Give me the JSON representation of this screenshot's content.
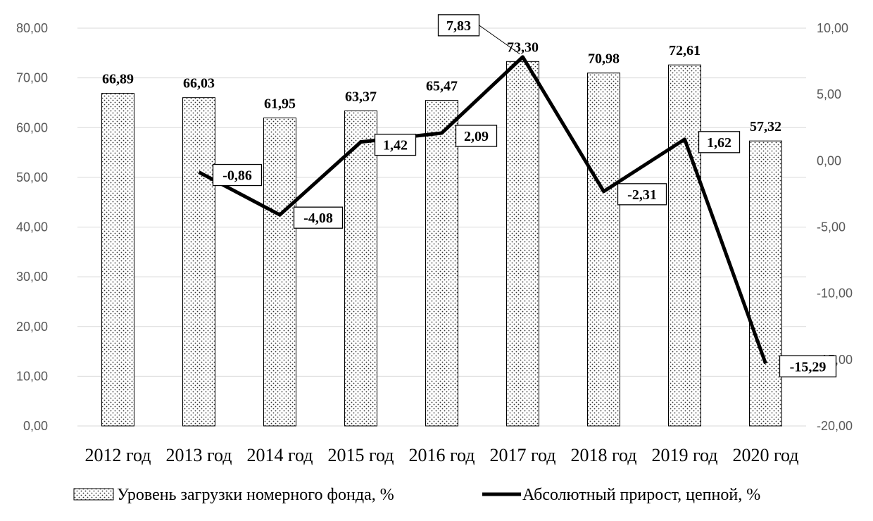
{
  "chart_data": {
    "type": "bar",
    "categories": [
      "2012 год",
      "2013 год",
      "2014 год",
      "2015 год",
      "2016 год",
      "2017 год",
      "2018 год",
      "2019 год",
      "2020 год"
    ],
    "series": [
      {
        "name": "Уровень загрузки номерного фонда, %",
        "type": "bar",
        "axis": "left",
        "values": [
          66.89,
          66.03,
          61.95,
          63.37,
          65.47,
          73.3,
          70.98,
          72.61,
          57.32
        ],
        "labels": [
          "66,89",
          "66,03",
          "61,95",
          "63,37",
          "65,47",
          "73,30",
          "70,98",
          "72,61",
          "57,32"
        ]
      },
      {
        "name": "Абсолютный прирост, цепной, %",
        "type": "line",
        "axis": "right",
        "values": [
          null,
          -0.86,
          -4.08,
          1.42,
          2.09,
          7.83,
          -2.31,
          1.62,
          -15.29
        ],
        "labels": [
          "",
          "-0,86",
          "-4,08",
          "1,42",
          "2,09",
          "7,83",
          "-2,31",
          "1,62",
          "-15,29"
        ]
      }
    ],
    "left_axis": {
      "ylim": [
        0,
        80
      ],
      "ticks": [
        "0,00",
        "10,00",
        "20,00",
        "30,00",
        "40,00",
        "50,00",
        "60,00",
        "70,00",
        "80,00"
      ]
    },
    "right_axis": {
      "ylim": [
        -20,
        10
      ],
      "ticks": [
        "-20,00",
        "-15,00",
        "-10,00",
        "-5,00",
        "0,00",
        "5,00",
        "10,00"
      ]
    },
    "grid": true,
    "legend": "bottom",
    "title": "",
    "xlabel": "",
    "ylabel": "",
    "colors": {
      "bar_fill": "#ffffff",
      "bar_dots": "#333333",
      "line": "#000000",
      "grid": "#d9d9d9"
    }
  }
}
